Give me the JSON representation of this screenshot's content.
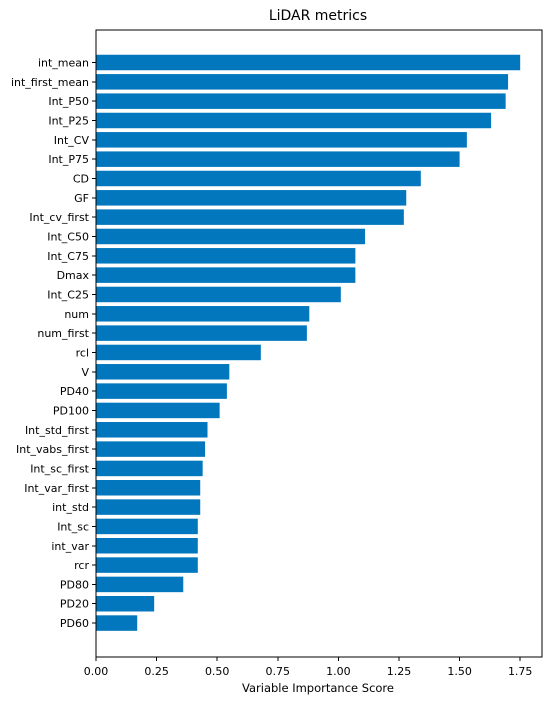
{
  "chart_data": {
    "type": "bar",
    "orientation": "horizontal",
    "title": "LiDAR metrics",
    "xlabel": "Variable Importance Score",
    "ylabel": "",
    "xlim": [
      0,
      1.84
    ],
    "xticks": [
      "0.00",
      "0.25",
      "0.50",
      "0.75",
      "1.00",
      "1.25",
      "1.50",
      "1.75"
    ],
    "tick_values": [
      0,
      0.25,
      0.5,
      0.75,
      1.0,
      1.25,
      1.5,
      1.75
    ],
    "grid": false,
    "bar_color": "#0277BD",
    "categories": [
      "int_mean",
      "int_first_mean",
      "Int_P50",
      "Int_P25",
      "Int_CV",
      "Int_P75",
      "CD",
      "GF",
      "Int_cv_first",
      "Int_C50",
      "Int_C75",
      "Dmax",
      "Int_C25",
      "num",
      "num_first",
      "rcl",
      "V",
      "PD40",
      "PD100",
      "Int_std_first",
      "Int_vabs_first",
      "Int_sc_first",
      "Int_var_first",
      "int_std",
      "Int_sc",
      "int_var",
      "rcr",
      "PD80",
      "PD20",
      "PD60"
    ],
    "values": [
      1.75,
      1.7,
      1.69,
      1.63,
      1.53,
      1.5,
      1.34,
      1.28,
      1.27,
      1.11,
      1.07,
      1.07,
      1.01,
      0.88,
      0.87,
      0.68,
      0.55,
      0.54,
      0.51,
      0.46,
      0.45,
      0.44,
      0.43,
      0.43,
      0.42,
      0.42,
      0.42,
      0.36,
      0.24,
      0.17
    ]
  }
}
